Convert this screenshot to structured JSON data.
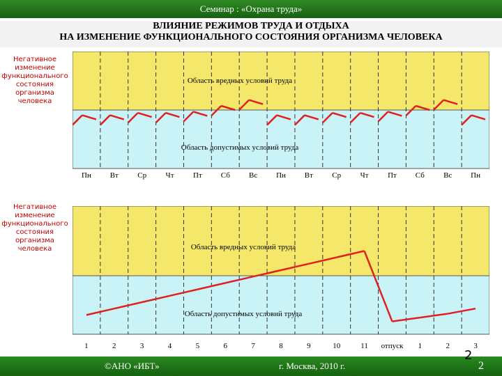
{
  "header": {
    "title": "Семинар : «Охрана труда»"
  },
  "titles": {
    "line1": "ВЛИЯНИЕ РЕЖИМОВ ТРУДА И ОТДЫХА",
    "line2": "НА ИЗМЕНЕНИЕ ФУНКЦИОНАЛЬНОГО СОСТОЯНИЯ ОРГАНИЗМА ЧЕЛОВЕКА"
  },
  "colors": {
    "harmful": "#f5e76a",
    "acceptable": "#c9f3f7",
    "line": "#e02020",
    "bar": "#1f7a1a",
    "side_text": "#c00000"
  },
  "chart1": {
    "side_label": [
      "Негативное",
      "изменение",
      "функционального",
      "состояния",
      "организма",
      "человека"
    ],
    "harmful_label": "Область вредных условий труда",
    "acceptable_label": "Область допустимых условий труда",
    "days": [
      "Пн",
      "Вт",
      "Ср",
      "Чт",
      "Пт",
      "Сб",
      "Вс",
      "Пн",
      "Вт",
      "Ср",
      "Чт",
      "Пт",
      "Сб",
      "Вс",
      "Пн"
    ]
  },
  "chart2": {
    "side_label": [
      "Негативное",
      "изменение",
      "функционального",
      "состояния",
      "организма",
      "человека"
    ],
    "harmful_label": "Область вредных условий труда",
    "acceptable_label": "Область допустимых условий труда",
    "days": [
      "1",
      "2",
      "3",
      "4",
      "5",
      "6",
      "7",
      "8",
      "9",
      "10",
      "11",
      "отпуск",
      "1",
      "2",
      "3"
    ]
  },
  "footer": {
    "left": "©АНО «ИБТ»",
    "center": "г. Москва,  2010 г.",
    "page": "2",
    "page_mark": "2"
  },
  "chart_data": [
    {
      "type": "line",
      "x": [
        "Пн",
        "Вт",
        "Ср",
        "Чт",
        "Пт",
        "Сб",
        "Вс",
        "Пн",
        "Вт",
        "Ср",
        "Чт",
        "Пт",
        "Сб",
        "Вс",
        "Пн"
      ],
      "series": [
        {
          "values": [
            0.42,
            0.42,
            0.44,
            0.44,
            0.45,
            0.5,
            0.55,
            0.42,
            0.42,
            0.44,
            0.44,
            0.45,
            0.5,
            0.55,
            0.42
          ]
        }
      ]
    },
    {
      "type": "line",
      "x": [
        "1",
        "2",
        "3",
        "4",
        "5",
        "6",
        "7",
        "8",
        "9",
        "10",
        "11",
        "отпуск",
        "1",
        "2",
        "3"
      ],
      "series": [
        {
          "values": [
            0.15,
            0.2,
            0.25,
            0.3,
            0.35,
            0.4,
            0.45,
            0.5,
            0.55,
            0.6,
            0.65,
            0.1,
            0.13,
            0.16,
            0.2
          ]
        }
      ]
    }
  ]
}
